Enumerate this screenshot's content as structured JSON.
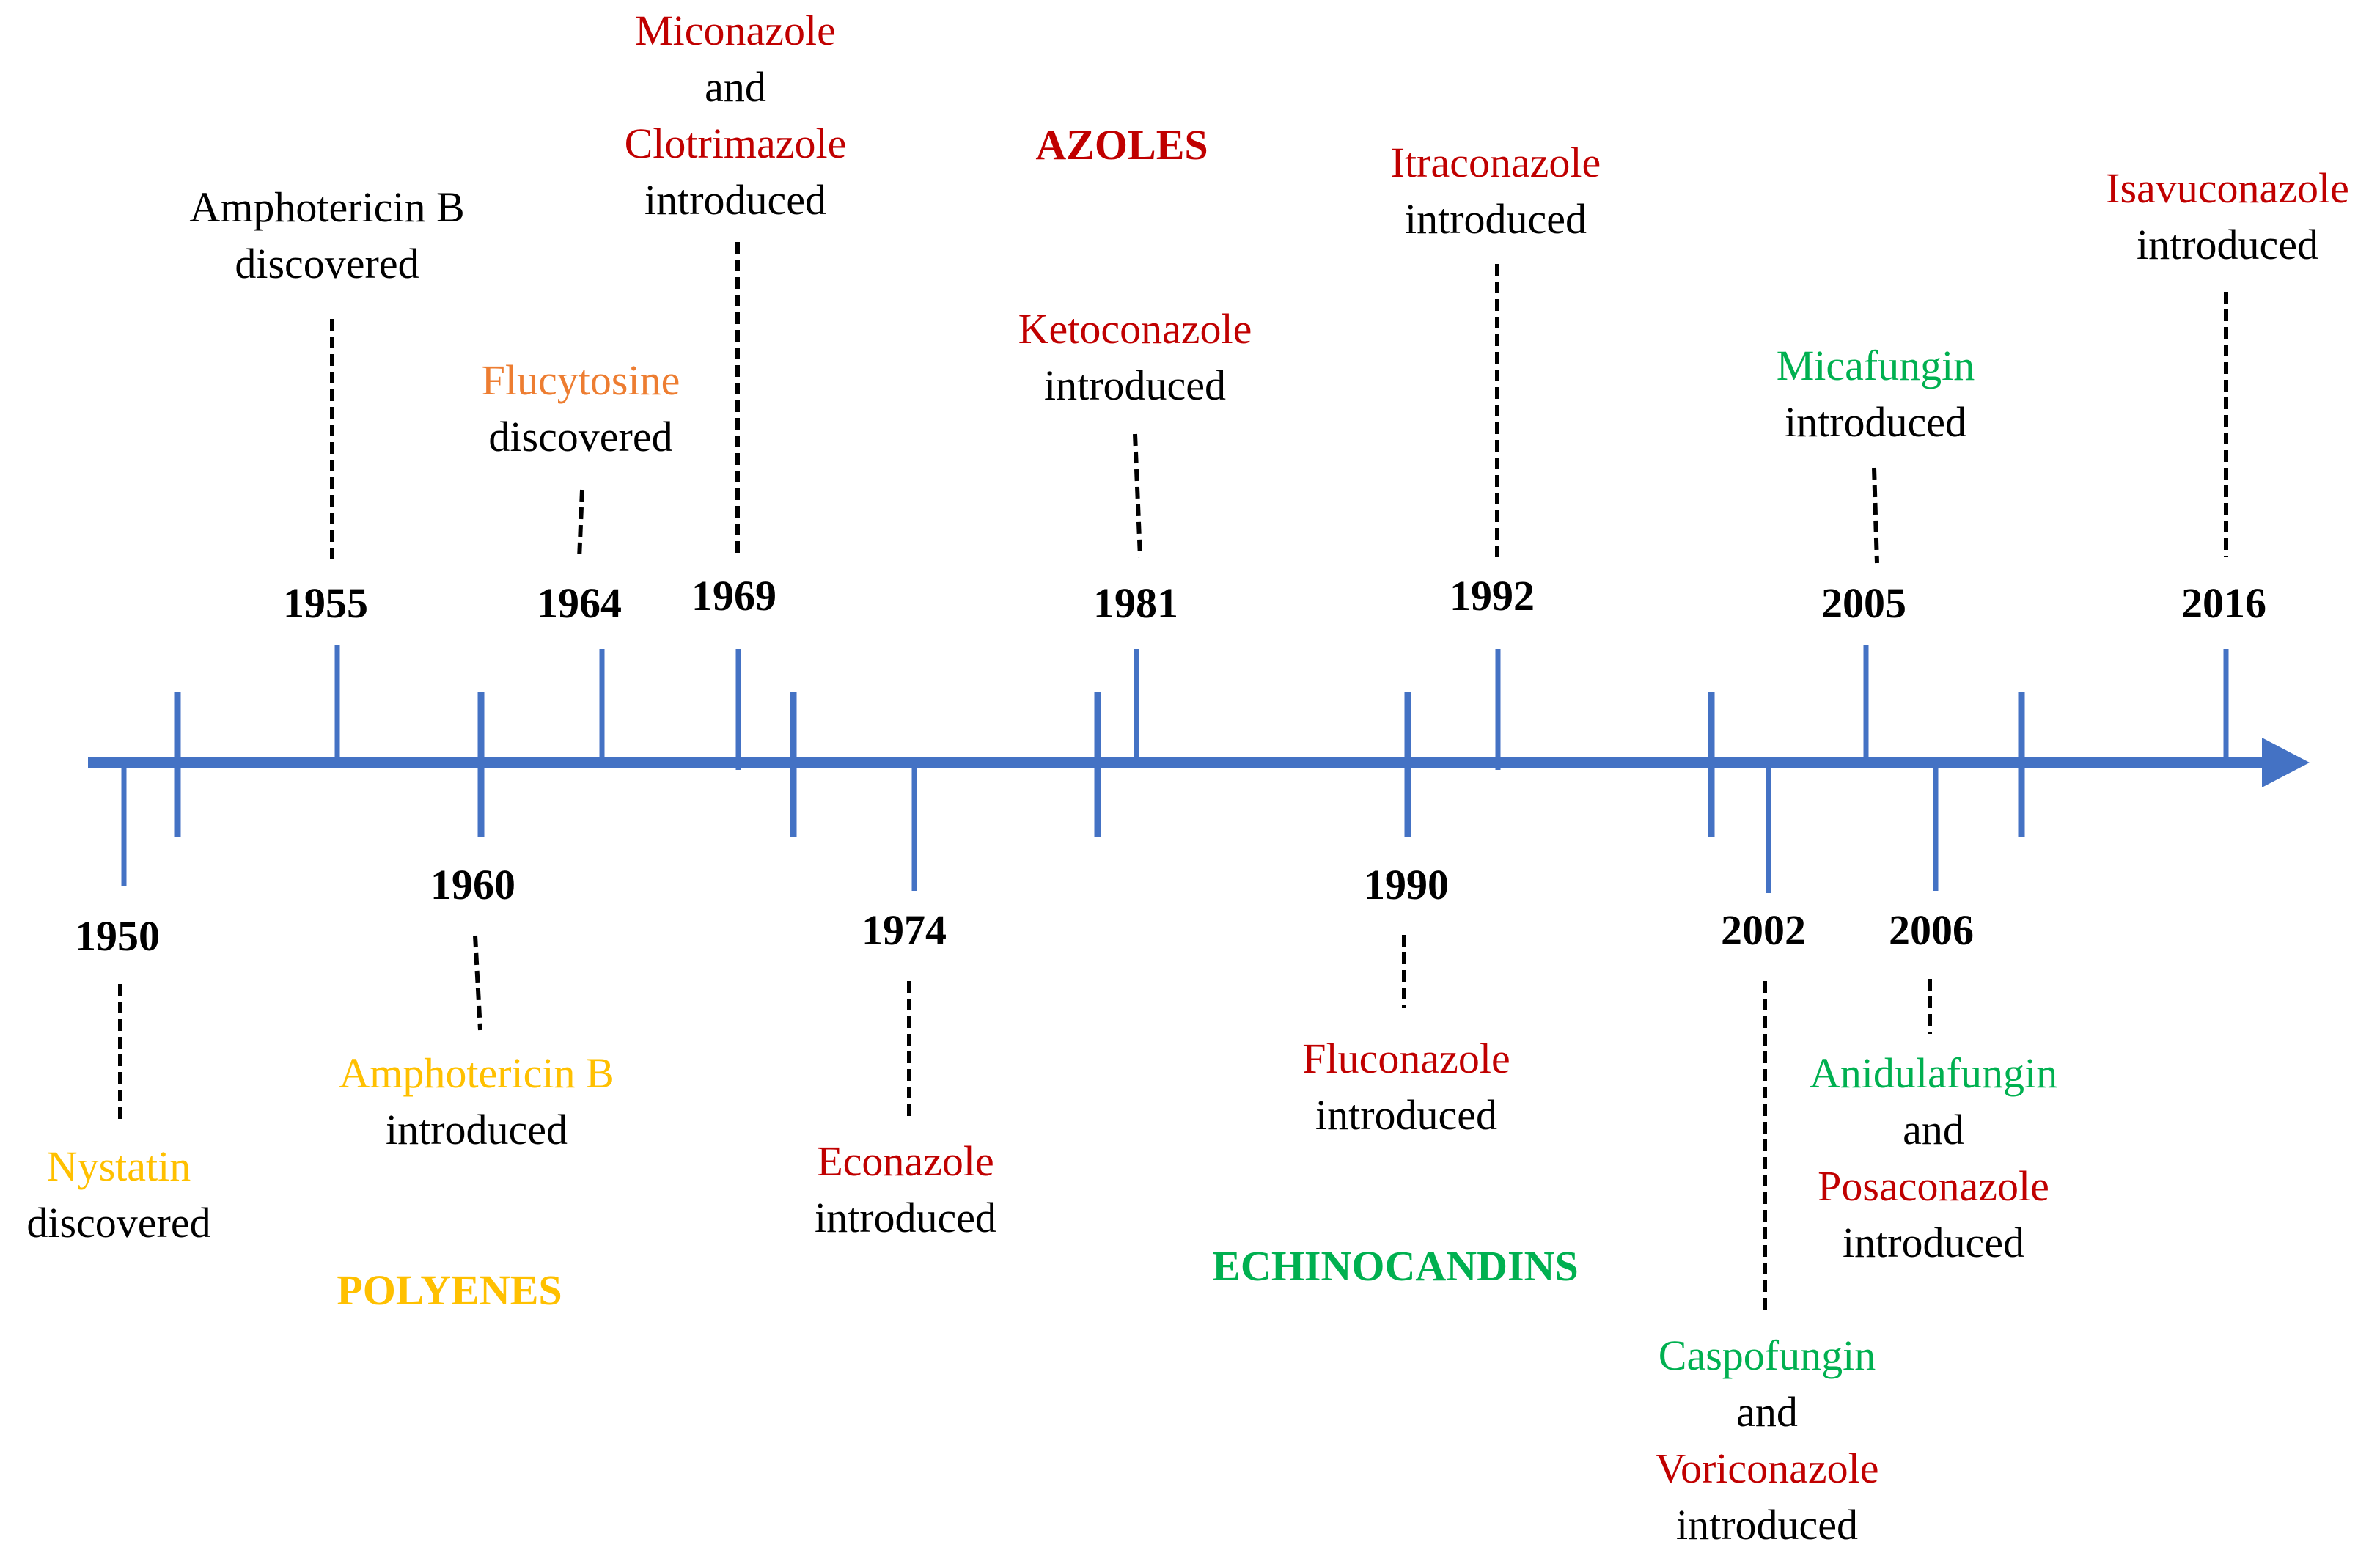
{
  "colors": {
    "axis": "#4472C4",
    "azole": "#C00000",
    "polyene": "#FFC000",
    "pyrimidine": "#ED7D31",
    "echinocandin": "#00B050",
    "text": "#000000"
  },
  "classes": {
    "azoles": "AZOLES",
    "polyenes": "POLYENES",
    "echinocandins": "ECHINOCANDINS"
  },
  "events": [
    {
      "year": "1950",
      "drugs": "Nystatin",
      "action": "discovered"
    },
    {
      "year": "1955",
      "drugs": "Amphotericin B",
      "action": "discovered"
    },
    {
      "year": "1960",
      "drugs": "Amphotericin B",
      "action": "introduced"
    },
    {
      "year": "1964",
      "drugs": "Flucytosine",
      "action": "discovered"
    },
    {
      "year": "1969",
      "drug1": "Miconazole",
      "connector": "and",
      "drug2": "Clotrimazole",
      "action": "introduced"
    },
    {
      "year": "1974",
      "drugs": "Econazole",
      "action": "introduced"
    },
    {
      "year": "1981",
      "drugs": "Ketoconazole",
      "action": "introduced"
    },
    {
      "year": "1990",
      "drugs": "Fluconazole",
      "action": "introduced"
    },
    {
      "year": "1992",
      "drugs": "Itraconazole",
      "action": "introduced"
    },
    {
      "year": "2002",
      "drug1": "Caspofungin",
      "connector": "and",
      "drug2": "Voriconazole",
      "action": "introduced"
    },
    {
      "year": "2005",
      "drugs": "Micafungin",
      "action": "introduced"
    },
    {
      "year": "2006",
      "drug1": "Anidulafungin",
      "connector": "and",
      "drug2": "Posaconazole",
      "action": "introduced"
    },
    {
      "year": "2016",
      "drugs": "Isavuconazole",
      "action": "introduced"
    }
  ]
}
